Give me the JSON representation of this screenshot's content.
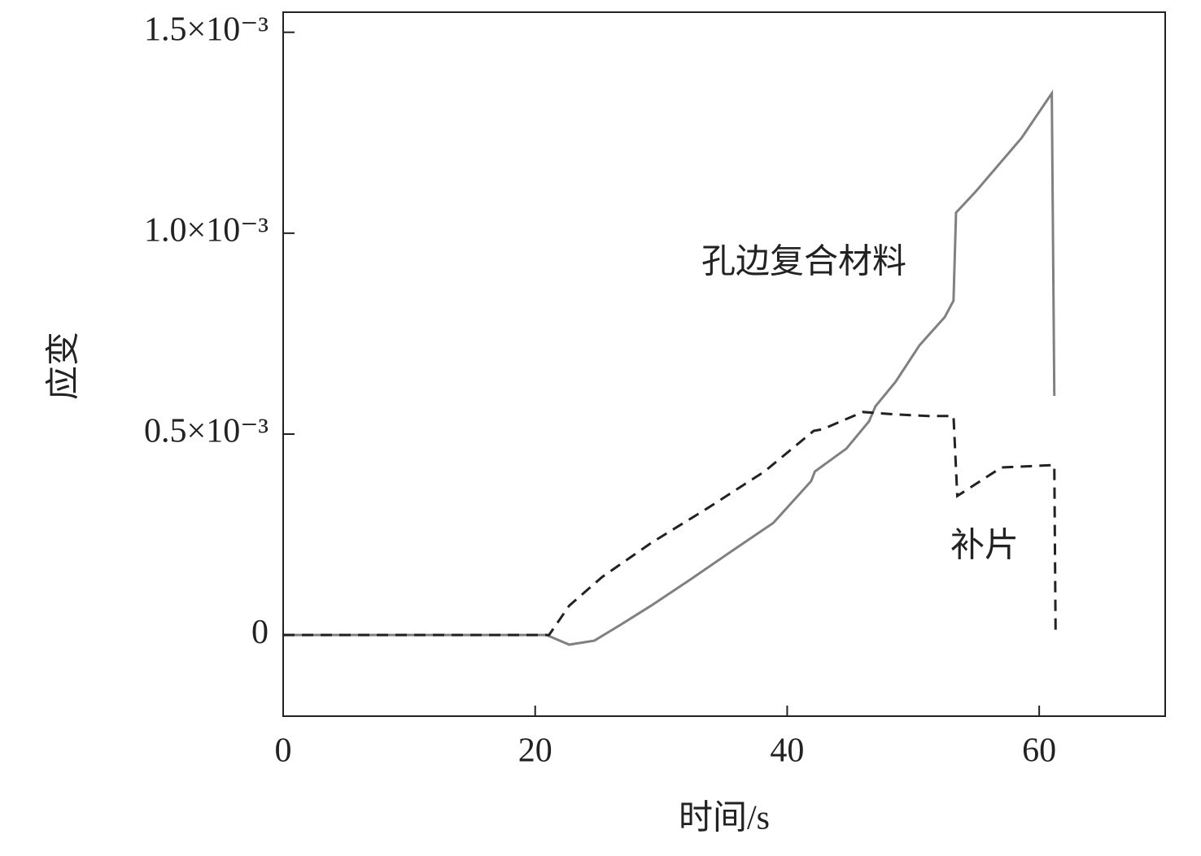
{
  "chart_data": {
    "type": "line",
    "x_label": "时间/s",
    "y_label": "应变",
    "xlim": [
      0,
      70
    ],
    "xticks": [
      0,
      20,
      40,
      60
    ],
    "ylim": [
      -0.000202,
      0.00155
    ],
    "yticks": [
      0,
      {
        "value": 0.0005,
        "label": "0.5×10⁻³"
      },
      {
        "value": 0.001,
        "label": "1.0×10⁻³"
      },
      {
        "value": 0.0015,
        "label": "1.5×10⁻³"
      }
    ],
    "series": [
      {
        "name": "孔边复合材料",
        "color": "#808080",
        "dash": false,
        "x": [
          0,
          20.9,
          22.7,
          24.7,
          26.6,
          29.2,
          32.4,
          35.7,
          38.9,
          41.9,
          42.2,
          44.7,
          46.5,
          47.0,
          48.6,
          50.5,
          52.5,
          53.2,
          53.4,
          55.0,
          58.6,
          61.0,
          61.2
        ],
        "values": [
          0,
          0,
          -2.4e-05,
          -1.4e-05,
          2.2e-05,
          7.3e-05,
          0.00014,
          0.000211,
          0.000279,
          0.000383,
          0.000407,
          0.000464,
          0.000532,
          0.000569,
          0.00063,
          0.000721,
          0.000791,
          0.000832,
          0.001051,
          0.001105,
          0.001237,
          0.001348,
          0.000595
        ]
      },
      {
        "name": "补片",
        "color": "#222222",
        "dash": true,
        "x": [
          0,
          21.1,
          22.7,
          25.3,
          29.2,
          33.7,
          38.2,
          42.1,
          42.8,
          46.0,
          48.6,
          51.2,
          53.2,
          53.5,
          57.0,
          61.2,
          61.3
        ],
        "values": [
          0,
          0,
          7.3e-05,
          0.000144,
          0.000229,
          0.000316,
          0.000407,
          0.000508,
          0.000512,
          0.000555,
          0.000549,
          0.000545,
          0.000545,
          0.000346,
          0.000417,
          0.000423,
          1.2e-05
        ]
      }
    ]
  }
}
